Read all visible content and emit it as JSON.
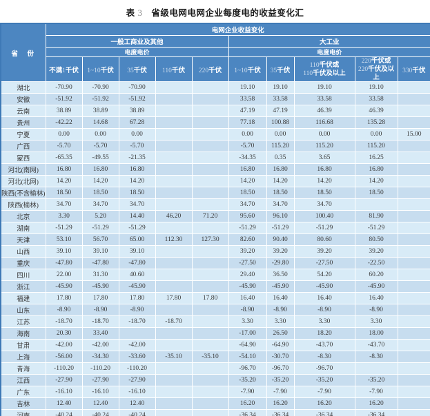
{
  "colors": {
    "header_blue": "#4c86c1",
    "row_light": "#d8ebf7",
    "row_dark": "#c7ddef",
    "outer_border": "#3e79b6",
    "gridline": "#ffffff",
    "value_text": "#3b3b3b"
  },
  "chart_data": {
    "type": "table",
    "title": "表 3　省级电网电网企业每度电的收益变化汇",
    "corner_header": "省　份",
    "top_header": "电网企业收益变化",
    "groups": [
      {
        "label": "一般工商业及其他",
        "price_type": "电度电价",
        "columns": [
          [
            "不满1千伏"
          ],
          [
            "1~10千伏"
          ],
          [
            "35千伏"
          ],
          [
            "110千伏"
          ],
          [
            "220千伏"
          ]
        ]
      },
      {
        "label": "大工业",
        "price_type": "电度电价",
        "columns": [
          [
            "1~10千伏"
          ],
          [
            "35千伏"
          ],
          [
            "110千伏或",
            "110千伏及以上"
          ],
          [
            "220千伏或",
            "220千伏及以上"
          ],
          [
            "330千伏"
          ]
        ]
      }
    ],
    "rows": [
      {
        "province": "湖北",
        "values": [
          "-70.90",
          "-70.90",
          "-70.90",
          "",
          "",
          "19.10",
          "19.10",
          "19.10",
          "19.10",
          ""
        ]
      },
      {
        "province": "安徽",
        "values": [
          "-51.92",
          "-51.92",
          "-51.92",
          "",
          "",
          "33.58",
          "33.58",
          "33.58",
          "33.58",
          ""
        ]
      },
      {
        "province": "云南",
        "values": [
          "38.89",
          "38.89",
          "38.89",
          "",
          "",
          "47.19",
          "47.19",
          "46.39",
          "46.39",
          ""
        ]
      },
      {
        "province": "贵州",
        "values": [
          "-42.22",
          "14.68",
          "67.28",
          "",
          "",
          "77.18",
          "100.88",
          "116.68",
          "135.28",
          ""
        ]
      },
      {
        "province": "宁夏",
        "values": [
          "0.00",
          "0.00",
          "0.00",
          "",
          "",
          "0.00",
          "0.00",
          "0.00",
          "0.00",
          "15.00"
        ]
      },
      {
        "province": "广西",
        "values": [
          "-5.70",
          "-5.70",
          "-5.70",
          "",
          "",
          "-5.70",
          "115.20",
          "115.20",
          "115.20",
          ""
        ]
      },
      {
        "province": "蒙西",
        "values": [
          "-65.35",
          "-49.55",
          "-21.35",
          "",
          "",
          "-34.35",
          "0.35",
          "3.65",
          "16.25",
          ""
        ]
      },
      {
        "province": "河北(南网)",
        "values": [
          "16.80",
          "16.80",
          "16.80",
          "",
          "",
          "16.80",
          "16.80",
          "16.80",
          "16.80",
          ""
        ]
      },
      {
        "province": "河北(北网)",
        "values": [
          "14.20",
          "14.20",
          "14.20",
          "",
          "",
          "14.20",
          "14.20",
          "14.20",
          "14.20",
          ""
        ]
      },
      {
        "province": "陕西(不含榆林)",
        "values": [
          "18.50",
          "18.50",
          "18.50",
          "",
          "",
          "18.50",
          "18.50",
          "18.50",
          "18.50",
          ""
        ]
      },
      {
        "province": "陕西(榆林)",
        "values": [
          "34.70",
          "34.70",
          "34.70",
          "",
          "",
          "34.70",
          "34.70",
          "34.70",
          "",
          ""
        ]
      },
      {
        "province": "北京",
        "values": [
          "3.30",
          "5.20",
          "14.40",
          "46.20",
          "71.20",
          "95.60",
          "96.10",
          "100.40",
          "81.90",
          ""
        ]
      },
      {
        "province": "湖南",
        "values": [
          "-51.29",
          "-51.29",
          "-51.29",
          "",
          "",
          "-51.29",
          "-51.29",
          "-51.29",
          "-51.29",
          ""
        ]
      },
      {
        "province": "天津",
        "values": [
          "53.10",
          "56.70",
          "65.00",
          "112.30",
          "127.30",
          "82.60",
          "90.40",
          "80.60",
          "80.50",
          ""
        ]
      },
      {
        "province": "山西",
        "values": [
          "39.10",
          "39.10",
          "39.10",
          "",
          "",
          "39.20",
          "39.20",
          "39.20",
          "39.20",
          ""
        ]
      },
      {
        "province": "重庆",
        "values": [
          "-47.80",
          "-47.80",
          "-47.80",
          "",
          "",
          "-27.50",
          "-29.80",
          "-27.50",
          "-22.50",
          ""
        ]
      },
      {
        "province": "四川",
        "values": [
          "22.00",
          "31.30",
          "40.60",
          "",
          "",
          "29.40",
          "36.50",
          "54.20",
          "60.20",
          ""
        ]
      },
      {
        "province": "浙江",
        "values": [
          "-45.90",
          "-45.90",
          "-45.90",
          "",
          "",
          "-45.90",
          "-45.90",
          "-45.90",
          "-45.90",
          ""
        ]
      },
      {
        "province": "福建",
        "values": [
          "17.80",
          "17.80",
          "17.80",
          "17.80",
          "17.80",
          "16.40",
          "16.40",
          "16.40",
          "16.40",
          ""
        ]
      },
      {
        "province": "山东",
        "values": [
          "-8.90",
          "-8.90",
          "-8.90",
          "",
          "",
          "-8.90",
          "-8.90",
          "-8.90",
          "-8.90",
          ""
        ]
      },
      {
        "province": "江苏",
        "values": [
          "-18.70",
          "-18.70",
          "-18.70",
          "-18.70",
          "",
          "3.30",
          "3.30",
          "3.30",
          "3.30",
          ""
        ]
      },
      {
        "province": "海南",
        "values": [
          "20.30",
          "33.40",
          "",
          "",
          "",
          "-17.00",
          "26.50",
          "18.20",
          "18.00",
          ""
        ]
      },
      {
        "province": "甘肃",
        "values": [
          "-42.00",
          "-42.00",
          "-42.00",
          "",
          "",
          "-64.90",
          "-64.90",
          "-43.70",
          "-43.70",
          ""
        ]
      },
      {
        "province": "上海",
        "values": [
          "-56.00",
          "-34.30",
          "-33.60",
          "-35.10",
          "-35.10",
          "-54.10",
          "-30.70",
          "-8.30",
          "-8.30",
          ""
        ]
      },
      {
        "province": "青海",
        "values": [
          "-110.20",
          "-110.20",
          "-110.20",
          "",
          "",
          "-96.70",
          "-96.70",
          "-96.70",
          "",
          ""
        ]
      },
      {
        "province": "江西",
        "values": [
          "-27.90",
          "-27.90",
          "-27.90",
          "",
          "",
          "-35.20",
          "-35.20",
          "-35.20",
          "-35.20",
          ""
        ]
      },
      {
        "province": "广东",
        "values": [
          "-16.10",
          "-16.10",
          "-16.10",
          "",
          "",
          "-7.90",
          "-7.90",
          "-7.90",
          "-7.90",
          ""
        ]
      },
      {
        "province": "吉林",
        "values": [
          "12.40",
          "12.40",
          "12.40",
          "",
          "",
          "16.20",
          "16.20",
          "16.20",
          "16.20",
          ""
        ]
      },
      {
        "province": "河南",
        "values": [
          "-40.24",
          "-40.24",
          "-40.24",
          "",
          "",
          "-36.34",
          "-36.34",
          "-36.34",
          "-36.34",
          ""
        ]
      }
    ]
  }
}
